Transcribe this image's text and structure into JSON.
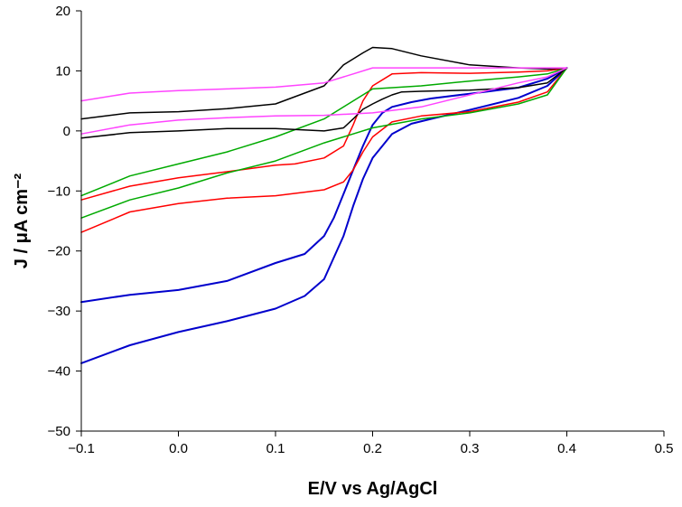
{
  "chart_data": {
    "type": "line",
    "title": "",
    "xlabel": "E/V vs Ag/AgCl",
    "ylabel": "J / μA cm⁻²",
    "xlim": [
      -0.1,
      0.5
    ],
    "ylim": [
      -50,
      20
    ],
    "x_ticks": [
      -0.1,
      0.0,
      0.1,
      0.2,
      0.3,
      0.4,
      0.5
    ],
    "x_tick_labels": [
      "−0.1",
      "0.0",
      "0.1",
      "0.2",
      "0.3",
      "0.4",
      "0.5"
    ],
    "y_ticks": [
      -50,
      -40,
      -30,
      -20,
      -10,
      0,
      10,
      20
    ],
    "y_tick_labels": [
      "−50",
      "−40",
      "−30",
      "−20",
      "−10",
      "0",
      "10",
      "20"
    ],
    "grid": false,
    "legend": "none",
    "series": [
      {
        "color": "#0000cc",
        "x": [
          -0.1,
          -0.05,
          0.0,
          0.05,
          0.1,
          0.13,
          0.15,
          0.17,
          0.18,
          0.19,
          0.2,
          0.21,
          0.22,
          0.24,
          0.26,
          0.3,
          0.35,
          0.38,
          0.4,
          0.4,
          0.38,
          0.35,
          0.3,
          0.26,
          0.24,
          0.22,
          0.21,
          0.2,
          0.19,
          0.18,
          0.17,
          0.16,
          0.15,
          0.13,
          0.1,
          0.05,
          0.0,
          -0.05,
          -0.1
        ],
        "y": [
          -38.7,
          -35.7,
          -33.5,
          -31.7,
          -29.6,
          -27.5,
          -24.7,
          -17.5,
          -12.5,
          -8.0,
          -4.5,
          -2.5,
          -0.5,
          1.2,
          2.0,
          3.5,
          5.5,
          7.5,
          10.5,
          10.5,
          8.7,
          7.2,
          6.2,
          5.4,
          4.8,
          4.0,
          3.0,
          1.0,
          -2.5,
          -6.5,
          -10.5,
          -14.5,
          -17.5,
          -20.5,
          -22.0,
          -25.0,
          -26.5,
          -27.3,
          -28.5
        ]
      },
      {
        "color": "#ff0000",
        "x": [
          -0.1,
          -0.05,
          0.0,
          0.05,
          0.1,
          0.15,
          0.17,
          0.18,
          0.19,
          0.2,
          0.22,
          0.25,
          0.3,
          0.35,
          0.38,
          0.4,
          0.4,
          0.38,
          0.35,
          0.3,
          0.25,
          0.22,
          0.2,
          0.19,
          0.18,
          0.17,
          0.15,
          0.12,
          0.1,
          0.05,
          0.0,
          -0.05,
          -0.1
        ],
        "y": [
          -16.9,
          -13.5,
          -12.1,
          -11.2,
          -10.8,
          -9.8,
          -8.5,
          -6.5,
          -3.5,
          -1.0,
          1.5,
          2.5,
          3.2,
          4.8,
          6.5,
          10.5,
          10.5,
          10.0,
          9.8,
          9.6,
          9.7,
          9.5,
          7.5,
          5.0,
          1.0,
          -2.5,
          -4.5,
          -5.5,
          -5.7,
          -6.8,
          -7.8,
          -9.2,
          -11.5
        ]
      },
      {
        "color": "#00aa00",
        "x": [
          -0.1,
          -0.05,
          0.0,
          0.05,
          0.1,
          0.15,
          0.2,
          0.25,
          0.3,
          0.35,
          0.38,
          0.4,
          0.4,
          0.38,
          0.35,
          0.3,
          0.25,
          0.2,
          0.15,
          0.1,
          0.05,
          0.0,
          -0.05,
          -0.1
        ],
        "y": [
          -14.5,
          -11.5,
          -9.5,
          -7.0,
          -5.0,
          -2.0,
          0.5,
          2.0,
          3.0,
          4.5,
          6.0,
          10.5,
          10.5,
          9.5,
          9.0,
          8.3,
          7.5,
          7.0,
          2.0,
          -1.0,
          -3.5,
          -5.5,
          -7.5,
          -10.8
        ]
      },
      {
        "color": "#000000",
        "x": [
          -0.1,
          -0.05,
          0.0,
          0.05,
          0.1,
          0.15,
          0.17,
          0.18,
          0.19,
          0.2,
          0.21,
          0.22,
          0.23,
          0.25,
          0.3,
          0.35,
          0.38,
          0.4,
          0.4,
          0.38,
          0.35,
          0.3,
          0.25,
          0.22,
          0.2,
          0.19,
          0.17,
          0.15,
          0.1,
          0.05,
          0.0,
          -0.05,
          -0.1
        ],
        "y": [
          -1.2,
          -0.3,
          0.0,
          0.4,
          0.4,
          0.0,
          0.5,
          2.0,
          3.6,
          4.5,
          5.3,
          6.0,
          6.5,
          6.6,
          6.8,
          7.2,
          8.0,
          10.5,
          10.5,
          10.3,
          10.5,
          11.0,
          12.5,
          13.7,
          13.9,
          13.0,
          11.0,
          7.5,
          4.5,
          3.7,
          3.2,
          3.0,
          2.0
        ]
      },
      {
        "color": "#ff44ff",
        "x": [
          -0.1,
          -0.05,
          0.0,
          0.05,
          0.1,
          0.15,
          0.2,
          0.25,
          0.3,
          0.35,
          0.38,
          0.4,
          0.4,
          0.38,
          0.35,
          0.3,
          0.25,
          0.22,
          0.2,
          0.18,
          0.15,
          0.1,
          0.05,
          0.0,
          -0.05,
          -0.1
        ],
        "y": [
          -0.5,
          1.0,
          1.8,
          2.2,
          2.5,
          2.6,
          3.0,
          4.0,
          6.0,
          8.0,
          9.0,
          10.5,
          10.5,
          10.5,
          10.5,
          10.5,
          10.5,
          10.5,
          10.5,
          9.5,
          8.0,
          7.3,
          7.0,
          6.7,
          6.3,
          5.0
        ]
      }
    ]
  }
}
